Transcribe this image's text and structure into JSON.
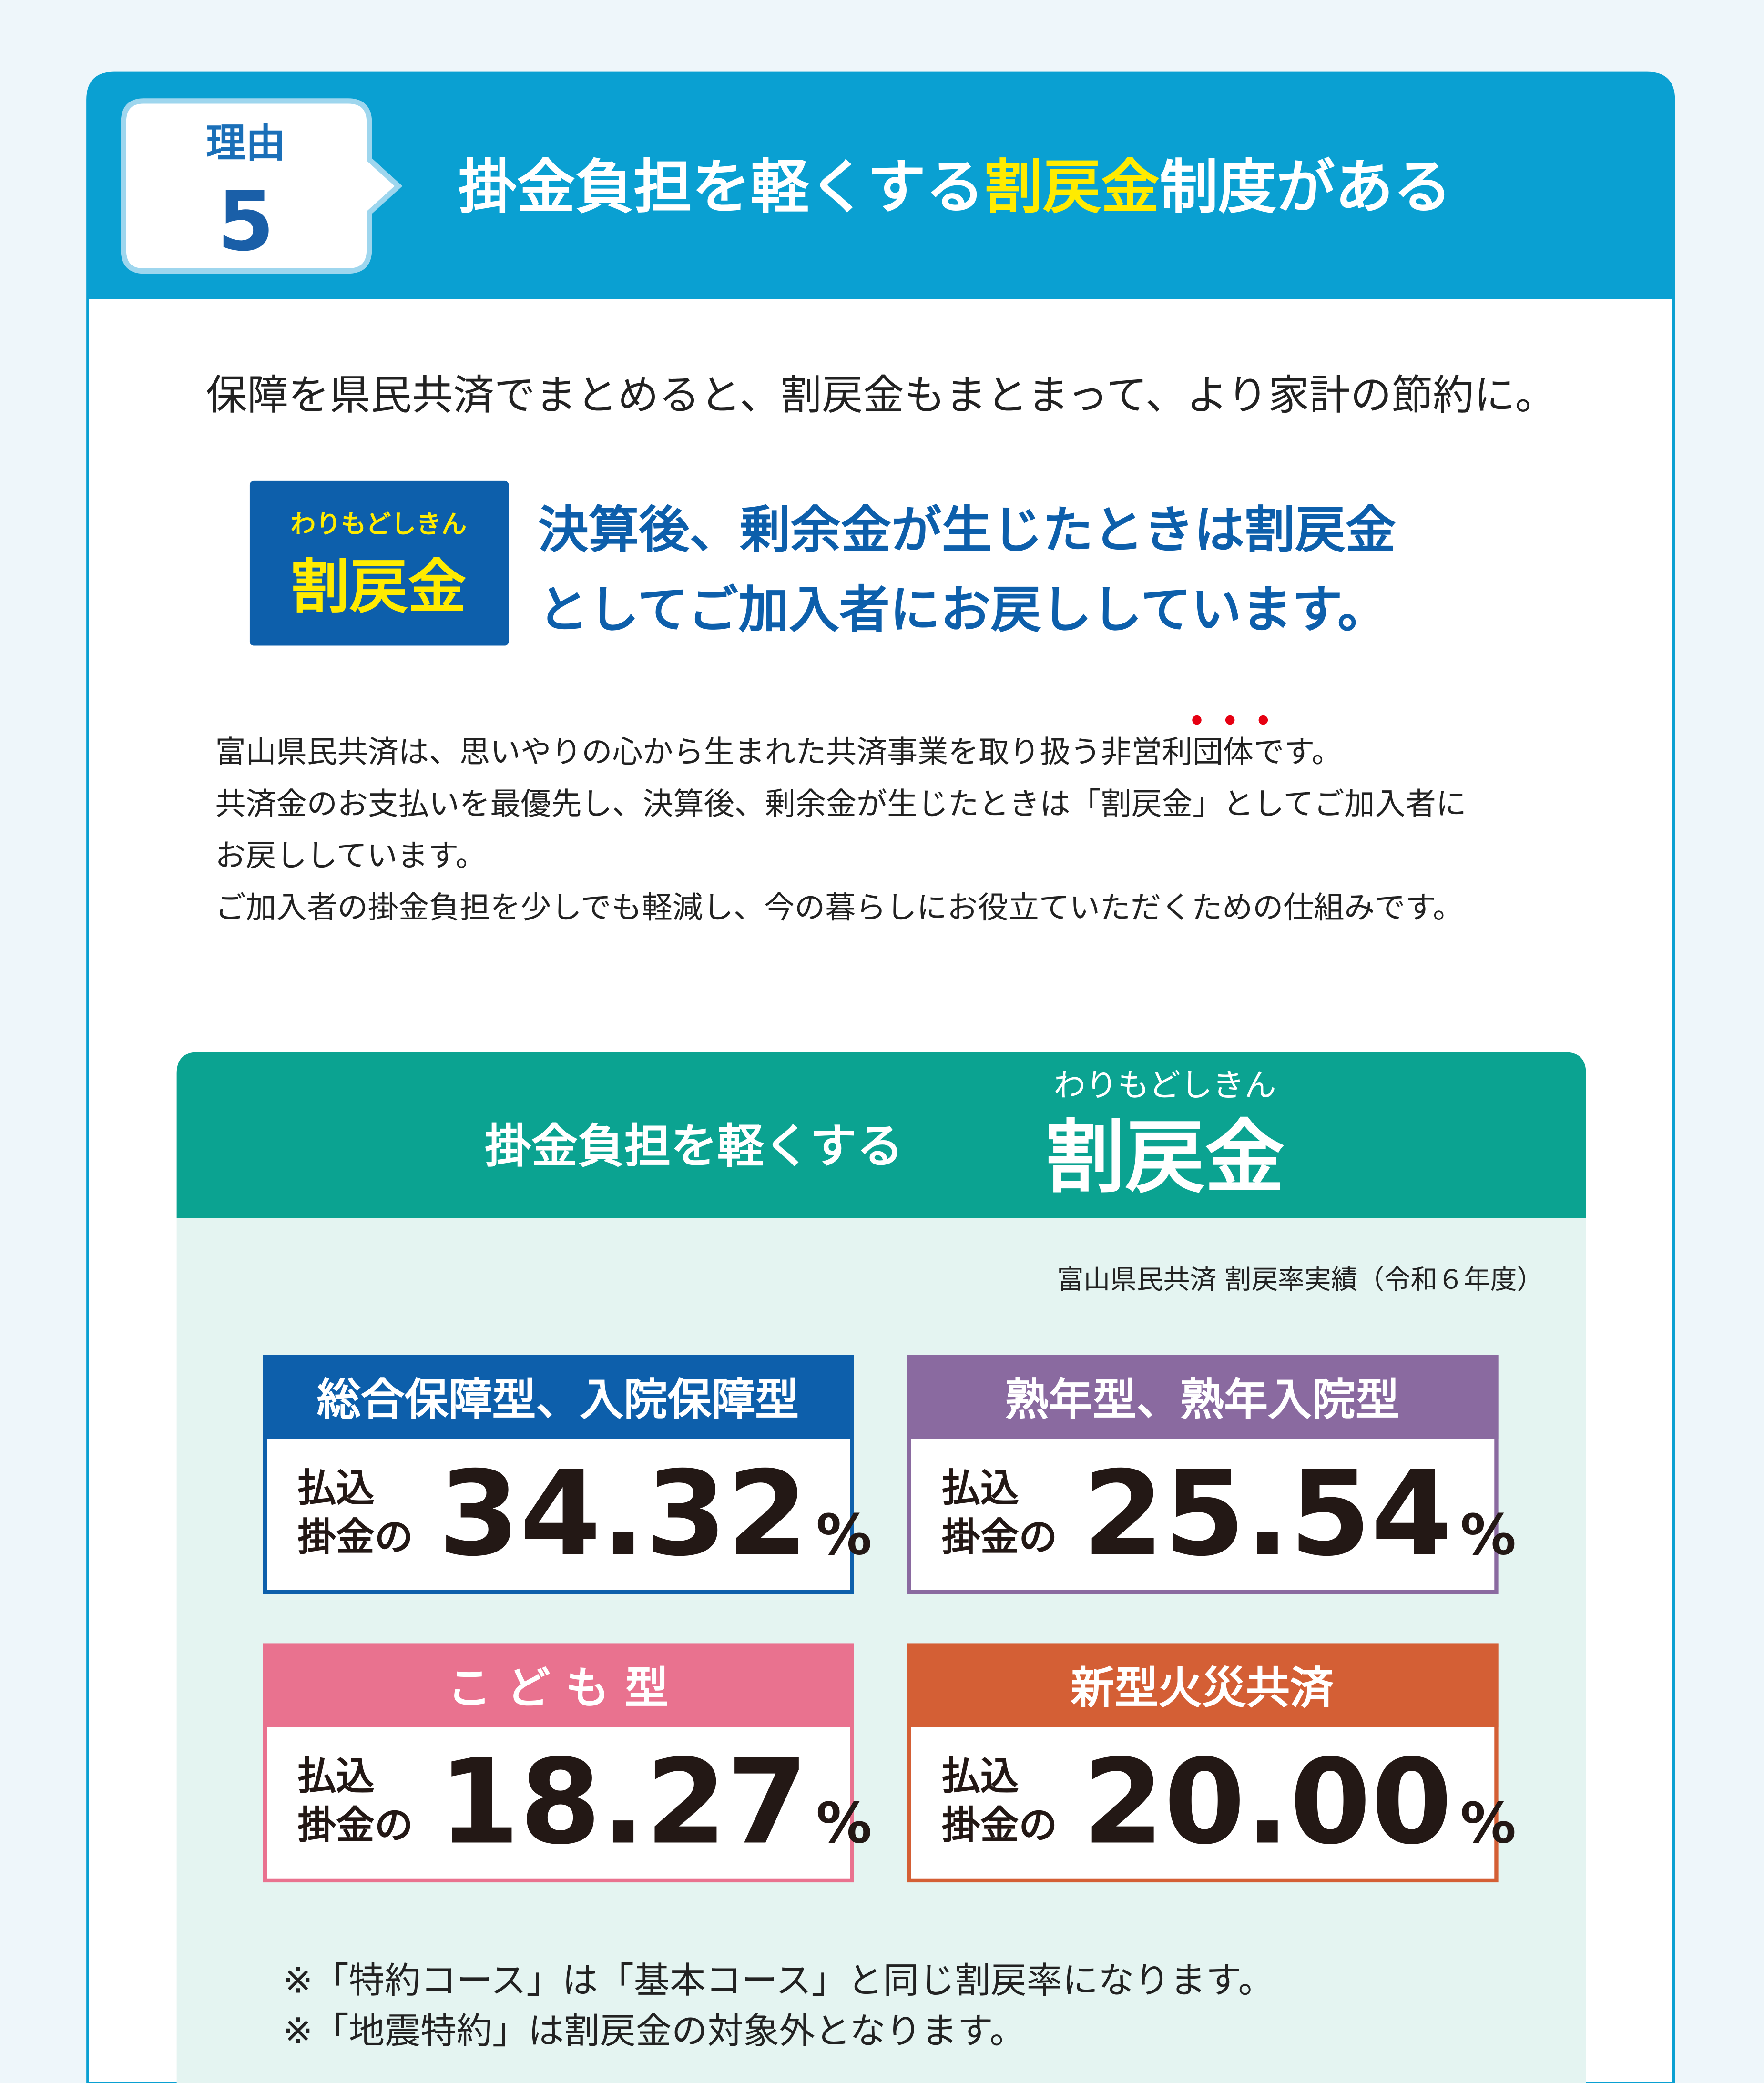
{
  "header": {
    "badge_label": "理由",
    "badge_number": "5",
    "title_before": "掛金負担を軽くする",
    "title_highlight": "割戻金",
    "title_after": "制度がある"
  },
  "lead": "保障を県民共済でまとめると、割戻金もまとまって、より家計の節約に。",
  "callout": {
    "ruby": "わりもどしきん",
    "label": "割戻金",
    "message_lines": [
      "決算後、剰余金が生じたときは割戻金",
      "としてご加入者にお戻ししています。"
    ]
  },
  "body_lines": [
    "富山県民共済は、思いやりの心から生まれた共済事業を取り扱う非営利団体です。",
    "共済金のお支払いを最優先し、決算後、剰余金が生じたときは「割戻金」としてご加入者に",
    "お戻ししています。",
    "ご加入者の掛金負担を少しでも軽減し、今の暮らしにお役立ていただくための仕組みです。"
  ],
  "panel": {
    "title": "掛金負担を軽くする",
    "ruby": "わりもどしきん",
    "title_emphasis": "割戻金",
    "caption": "富山県民共済 割戻率実績（令和６年度）",
    "cards": [
      {
        "name": "総合保障型、入院保障型",
        "color": "#0d5fab",
        "prefix_lines": [
          "払込",
          "掛金の"
        ],
        "rate": "34.32",
        "unit": "%"
      },
      {
        "name": "熟年型、熟年入院型",
        "color": "#8a6aa0",
        "prefix_lines": [
          "払込",
          "掛金の"
        ],
        "rate": "25.54",
        "unit": "%"
      },
      {
        "name": "こ ど も 型",
        "color": "#e9728f",
        "prefix_lines": [
          "払込",
          "掛金の"
        ],
        "rate": "18.27",
        "unit": "%"
      },
      {
        "name": "新型火災共済",
        "color": "#d45f35",
        "prefix_lines": [
          "払込",
          "掛金の"
        ],
        "rate": "20.00",
        "unit": "%"
      }
    ],
    "notes": [
      "※「特約コース」は「基本コース」と同じ割戻率になります。",
      "※「地震特約」は割戻金の対象外となります。"
    ]
  }
}
